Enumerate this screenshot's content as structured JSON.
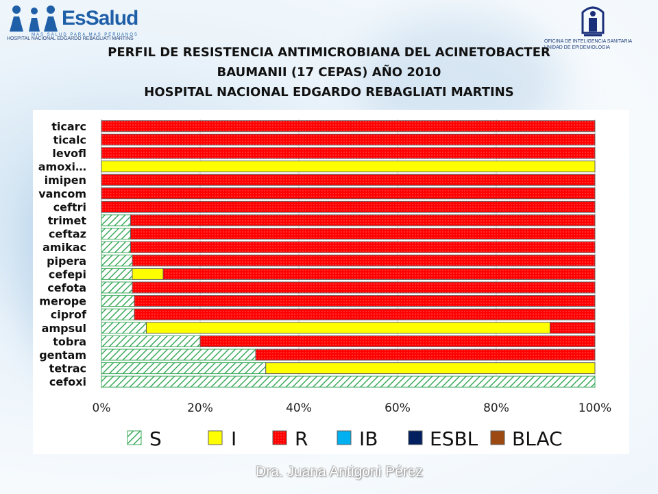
{
  "header": {
    "logo_name": "EsSalud",
    "logo_slogan": "MAS SALUD PARA MAS PERUANOS",
    "hospital_small": "HOSPITAL NACIONAL EDGARDO REBAGLIATI MARTINS",
    "office_line1": "OFICINA DE INTELIGENCIA SANITARIA",
    "office_line2": "UNIDAD DE EPIDEMIOLOGIA"
  },
  "footer": {
    "author": "Dra. Juana Antigoni Pérez"
  },
  "chart_data": {
    "type": "bar",
    "orientation": "horizontal",
    "stacked": true,
    "title": [
      "PERFIL DE RESISTENCIA ANTIMICROBIANA DEL ACINETOBACTER",
      "BAUMANII (17 CEPAS) AÑO 2010",
      "HOSPITAL NACIONAL EDGARDO REBAGLIATI MARTINS"
    ],
    "categories": [
      "ticarc",
      "ticalc",
      "levofl",
      "amoxi…",
      "imipen",
      "vancom",
      "ceftri",
      "trimet",
      "ceftaz",
      "amikac",
      "pipera",
      "cefepi",
      "cefota",
      "merope",
      "ciprof",
      "ampsul",
      "tobra",
      "gentam",
      "tetrac",
      "cefoxi"
    ],
    "series": [
      {
        "name": "S",
        "color": "#3aaa5a",
        "pattern": "hatch",
        "values": [
          0,
          0,
          0,
          0,
          0,
          0,
          0,
          0.059,
          0.059,
          0.059,
          0.0625,
          0.0625,
          0.0625,
          0.0667,
          0.0667,
          0.091,
          0.2,
          0.3125,
          0.333,
          1
        ]
      },
      {
        "name": "I",
        "color": "#ffff00",
        "values": [
          0,
          0,
          0,
          1,
          0,
          0,
          0,
          0,
          0,
          0,
          0,
          0.0625,
          0,
          0,
          0,
          0.818,
          0,
          0,
          0.667,
          0
        ]
      },
      {
        "name": "R",
        "color": "#ff0000",
        "pattern": "dots",
        "values": [
          1,
          1,
          1,
          0,
          1,
          1,
          1,
          0.941,
          0.941,
          0.941,
          0.9375,
          0.875,
          0.9375,
          0.9333,
          0.9333,
          0.091,
          0.8,
          0.6875,
          0,
          0
        ]
      },
      {
        "name": "IB",
        "color": "#00b0f0",
        "values": [
          0,
          0,
          0,
          0,
          0,
          0,
          0,
          0,
          0,
          0,
          0,
          0,
          0,
          0,
          0,
          0,
          0,
          0,
          0,
          0
        ]
      },
      {
        "name": "ESBL",
        "color": "#002060",
        "values": [
          0,
          0,
          0,
          0,
          0,
          0,
          0,
          0,
          0,
          0,
          0,
          0,
          0,
          0,
          0,
          0,
          0,
          0,
          0,
          0
        ]
      },
      {
        "name": "BLAC",
        "color": "#9c4a12",
        "values": [
          0,
          0,
          0,
          0,
          0,
          0,
          0,
          0,
          0,
          0,
          0,
          0,
          0,
          0,
          0,
          0,
          0,
          0,
          0,
          0
        ]
      }
    ],
    "x_ticks": [
      "0%",
      "20%",
      "40%",
      "60%",
      "80%",
      "100%"
    ],
    "xlim": [
      0,
      1
    ],
    "grid": true,
    "legend_position": "bottom"
  }
}
